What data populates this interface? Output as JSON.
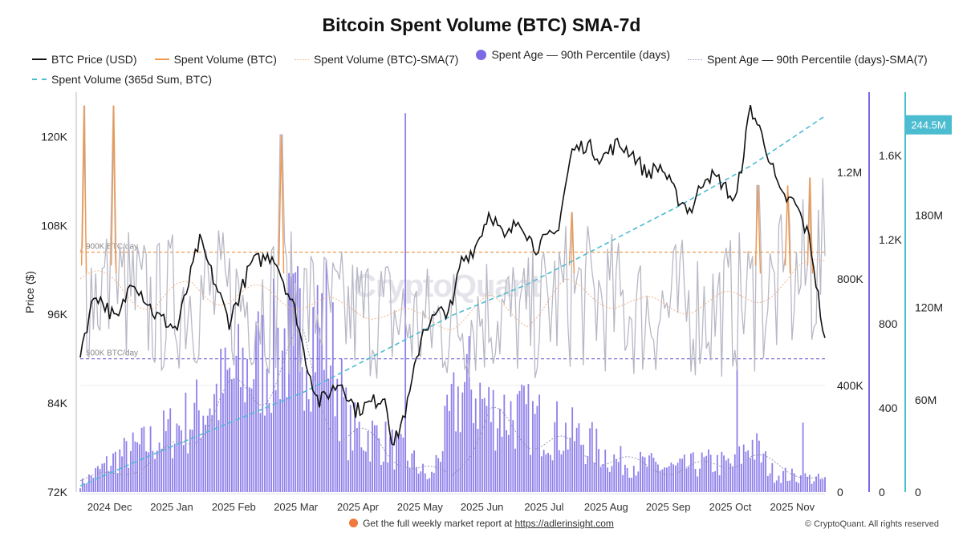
{
  "chart_data": {
    "type": "line",
    "title": "Bitcoin Spent Volume (BTC) SMA-7d",
    "legend": [
      {
        "label": "BTC Price (USD)",
        "color": "#111111",
        "style": "line"
      },
      {
        "label": "Spent Volume (BTC)",
        "color": "#f0974a",
        "style": "line"
      },
      {
        "label": "Spent Volume (BTC)-SMA(7)",
        "color": "#f2b48a",
        "style": "dotted"
      },
      {
        "label": "Spent Age — 90th Percentile (days)",
        "color": "#7b6ae6",
        "style": "dot"
      },
      {
        "label": "Spent Age — 90th Percentile (days)-SMA(7)",
        "color": "#9b9bb5",
        "style": "dotted"
      },
      {
        "label": "Spent Volume (365d Sum, BTC)",
        "color": "#4cbcd0",
        "style": "dashed"
      }
    ],
    "x_ticks": [
      "2024 Dec",
      "2025 Jan",
      "2025 Feb",
      "2025 Mar",
      "2025 Apr",
      "2025 May",
      "2025 Jun",
      "2025 Jul",
      "2025 Aug",
      "2025 Sep",
      "2025 Oct",
      "2025 Nov"
    ],
    "axes": {
      "price": {
        "label": "Price ($)",
        "range": [
          72000,
          126000
        ],
        "ticks": [
          "72K",
          "84K",
          "96K",
          "108K",
          "120K"
        ]
      },
      "spent_volume": {
        "range": [
          0,
          1500000
        ],
        "ticks": [
          "0",
          "400K",
          "800K",
          "1.2M"
        ]
      },
      "spent_age": {
        "range": [
          0,
          1900
        ],
        "ticks": [
          "0",
          "400",
          "800",
          "1.2K",
          "1.6K"
        ]
      },
      "sum_365d": {
        "range": [
          0,
          260000000
        ],
        "ticks": [
          "0",
          "60M",
          "120M",
          "180M"
        ],
        "last_value_label": "244.5M"
      }
    },
    "reference_lines": [
      {
        "label": "900K BTC/day",
        "value": 900000,
        "color": "#f0974a"
      },
      {
        "label": "500K BTC/day",
        "value": 500000,
        "color": "#6f63d8"
      }
    ],
    "series": [
      {
        "name": "BTC Price (USD)",
        "axis": "price",
        "x": [
          0,
          0.02,
          0.05,
          0.07,
          0.1,
          0.13,
          0.16,
          0.2,
          0.23,
          0.26,
          0.29,
          0.3,
          0.32,
          0.35,
          0.37,
          0.39,
          0.41,
          0.42,
          0.44,
          0.46,
          0.48,
          0.5,
          0.51,
          0.53,
          0.55,
          0.57,
          0.59,
          0.61,
          0.64,
          0.66,
          0.68,
          0.7,
          0.72,
          0.74,
          0.76,
          0.78,
          0.8,
          0.82,
          0.84,
          0.86,
          0.88,
          0.9,
          0.92,
          0.94,
          0.96,
          0.98,
          1.0
        ],
        "values": [
          91000,
          99000,
          95000,
          101000,
          96000,
          94000,
          106000,
          95000,
          103000,
          104000,
          96000,
          91000,
          84000,
          87000,
          83000,
          84000,
          85000,
          78000,
          84000,
          94000,
          96000,
          97000,
          103000,
          105000,
          110000,
          106000,
          109000,
          105000,
          107000,
          118000,
          119000,
          117000,
          119000,
          118000,
          115000,
          116000,
          112000,
          110000,
          115000,
          114000,
          111000,
          124000,
          119000,
          112000,
          111000,
          106000,
          92000
        ]
      },
      {
        "name": "Spent Volume (BTC)",
        "axis": "spent_volume",
        "x": [
          0.005,
          0.045,
          0.27,
          0.66,
          0.91,
          0.95,
          0.98
        ],
        "values": [
          1450000,
          1450000,
          1340000,
          1050000,
          1150000,
          1150000,
          1180000
        ]
      },
      {
        "name": "Spent Volume (BTC)-SMA(7)",
        "axis": "spent_volume",
        "x": [
          0,
          0.05,
          0.1,
          0.15,
          0.2,
          0.25,
          0.3,
          0.35,
          0.4,
          0.45,
          0.5,
          0.55,
          0.6,
          0.65,
          0.7,
          0.75,
          0.8,
          0.85,
          0.9,
          0.95,
          1.0
        ],
        "values": [
          800000,
          780000,
          700000,
          770000,
          730000,
          740000,
          720000,
          680000,
          690000,
          640000,
          650000,
          700000,
          660000,
          760000,
          740000,
          690000,
          710000,
          700000,
          740000,
          780000,
          880000
        ]
      },
      {
        "name": "Spent Volume (365d Sum, BTC)",
        "axis": "sum_365d",
        "x": [
          0,
          0.1,
          0.2,
          0.3,
          0.4,
          0.5,
          0.6,
          0.7,
          0.8,
          0.9,
          1.0
        ],
        "values": [
          4000000,
          25000000,
          45000000,
          65000000,
          90000000,
          115000000,
          135000000,
          160000000,
          185000000,
          212000000,
          244500000
        ]
      },
      {
        "name": "Spent Age — 90th Percentile (days)",
        "axis": "spent_age",
        "note": "daily bars; highs ~900 mid-Feb and early May; spike ~1800 at start of May",
        "x": [
          0,
          0.05,
          0.1,
          0.15,
          0.2,
          0.25,
          0.3,
          0.33,
          0.36,
          0.4,
          0.43,
          0.45,
          0.47,
          0.5,
          0.52,
          0.55,
          0.58,
          0.6,
          0.64,
          0.68,
          0.72,
          0.76,
          0.8,
          0.84,
          0.88,
          0.9,
          0.93,
          0.96,
          1.0
        ],
        "values": [
          40,
          180,
          260,
          380,
          560,
          700,
          840,
          860,
          320,
          280,
          200,
          150,
          60,
          420,
          560,
          420,
          400,
          380,
          320,
          260,
          160,
          140,
          120,
          150,
          140,
          260,
          100,
          80,
          60
        ]
      },
      {
        "name": "Spent Age — 90th Percentile (days)-SMA(7)",
        "axis": "spent_age",
        "x": [
          0,
          0.1,
          0.2,
          0.3,
          0.35,
          0.4,
          0.45,
          0.5,
          0.55,
          0.6,
          0.7,
          0.8,
          0.9,
          1.0
        ],
        "values": [
          60,
          150,
          480,
          720,
          300,
          260,
          120,
          100,
          380,
          300,
          180,
          110,
          180,
          60
        ]
      }
    ]
  },
  "footer": {
    "text": "Get the full weekly market report at",
    "link": "https://adlerinsight.com",
    "copyright": "© CryptoQuant. All rights reserved"
  },
  "watermark": "CryptoQuant"
}
